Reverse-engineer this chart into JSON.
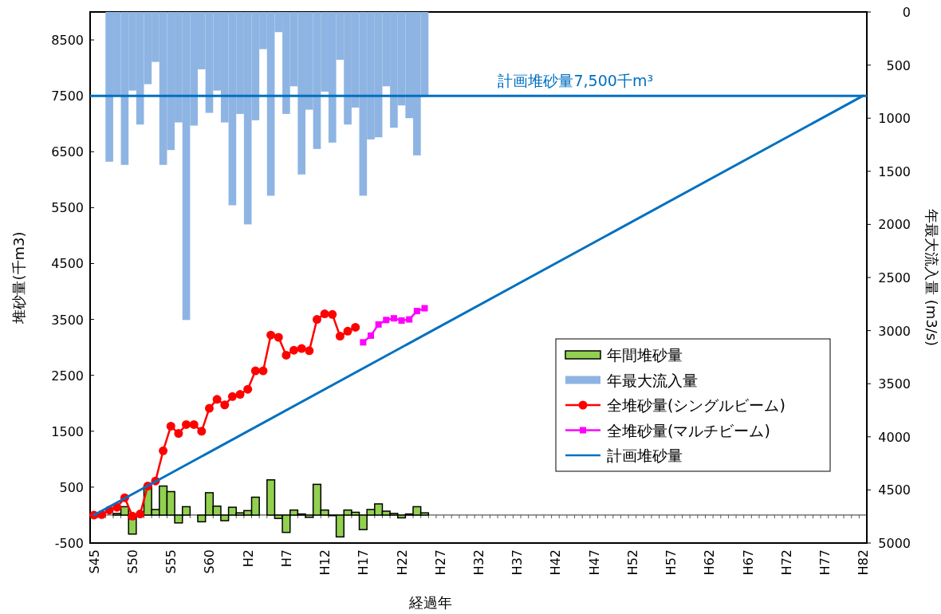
{
  "chart_data": {
    "type": "bar",
    "xlabel": "経過年",
    "ylabel": "堆砂量(千m3)",
    "y2label": "年最大流入量 (m3/s)",
    "categories": [
      "S45",
      null,
      null,
      null,
      null,
      "S50",
      null,
      null,
      null,
      null,
      "S55",
      null,
      null,
      null,
      null,
      "S60",
      null,
      null,
      null,
      null,
      "H2",
      null,
      null,
      null,
      null,
      "H7",
      null,
      null,
      null,
      null,
      "H12",
      null,
      null,
      null,
      null,
      "H17",
      null,
      null,
      null,
      null,
      "H22",
      null,
      null,
      null,
      null,
      "H27",
      null,
      null,
      null,
      null,
      "H32",
      null,
      null,
      null,
      null,
      "H37",
      null,
      null,
      null,
      null,
      "H42",
      null,
      null,
      null,
      null,
      "H47",
      null,
      null,
      null,
      null,
      "H52",
      null,
      null,
      null,
      null,
      "H57",
      null,
      null,
      null,
      null,
      "H62",
      null,
      null,
      null,
      null,
      "H67",
      null,
      null,
      null,
      null,
      "H72",
      null,
      null,
      null,
      null,
      "H77",
      null,
      null,
      null,
      null,
      "H82"
    ],
    "ylim": [
      -500,
      9000
    ],
    "yticks": [
      -500,
      500,
      1500,
      2500,
      3500,
      4500,
      5500,
      6500,
      7500,
      8500
    ],
    "y2lim": [
      5000,
      0
    ],
    "y2ticks": [
      0,
      500,
      1000,
      1500,
      2000,
      2500,
      3000,
      3500,
      4000,
      4500,
      5000
    ],
    "legend": "right",
    "grid": false,
    "ref_lines": [
      {
        "axis": "y",
        "value": 7500,
        "label": "計画堆砂量7,500千m³",
        "color": "#0070c0"
      }
    ],
    "series": [
      {
        "name": "年間堆砂量",
        "type": "bar",
        "axis": "y",
        "color": "#92d050",
        "values": [
          null,
          null,
          null,
          30,
          150,
          -340,
          null,
          520,
          100,
          520,
          420,
          -140,
          150,
          0,
          -120,
          400,
          160,
          -100,
          140,
          40,
          80,
          320,
          0,
          630,
          -60,
          -310,
          90,
          20,
          -40,
          550,
          90,
          -10,
          -390,
          90,
          50,
          -260,
          100,
          200,
          70,
          30,
          -50,
          20,
          150,
          40,
          null,
          null,
          null,
          null,
          null,
          null,
          null,
          null,
          null,
          null,
          null,
          null,
          null,
          null,
          null,
          null,
          null,
          null,
          null,
          null,
          null,
          null,
          null,
          null,
          null,
          null,
          null,
          null,
          null,
          null,
          null,
          null,
          null,
          null,
          null,
          null,
          null,
          null,
          null,
          null,
          null,
          null,
          null,
          null,
          null,
          null,
          null,
          null,
          null,
          null,
          null,
          null,
          null,
          null,
          null,
          null,
          null
        ]
      },
      {
        "name": "年最大流入量",
        "type": "bar",
        "axis": "y2",
        "color": "#8eb4e3",
        "values": [
          null,
          null,
          1410,
          780,
          1440,
          740,
          1060,
          680,
          470,
          1440,
          1300,
          1040,
          2900,
          1070,
          540,
          950,
          740,
          1040,
          1820,
          960,
          2000,
          1020,
          350,
          1730,
          190,
          960,
          700,
          1530,
          920,
          1290,
          750,
          1230,
          450,
          1060,
          900,
          1730,
          1200,
          1180,
          700,
          1090,
          880,
          1000,
          1350,
          800,
          null,
          null,
          null,
          null,
          null,
          null,
          null,
          null,
          null,
          null,
          null,
          null,
          null,
          null,
          null,
          null,
          null,
          null,
          null,
          null,
          null,
          null,
          null,
          null,
          null,
          null,
          null,
          null,
          null,
          null,
          null,
          null,
          null,
          null,
          null,
          null,
          null,
          null,
          null,
          null,
          null,
          null,
          null,
          null,
          null,
          null,
          null,
          null,
          null,
          null,
          null,
          null,
          null,
          null,
          null,
          null,
          null
        ]
      },
      {
        "name": "全堆砂量(シングルビーム)",
        "type": "line",
        "axis": "y",
        "color": "#ff0000",
        "marker": "circle",
        "values": [
          0,
          10,
          90,
          140,
          310,
          -20,
          20,
          520,
          610,
          1150,
          1590,
          1460,
          1620,
          1620,
          1500,
          1910,
          2070,
          1970,
          2120,
          2160,
          2250,
          2580,
          2580,
          3220,
          3180,
          2860,
          2950,
          2980,
          2940,
          3500,
          3600,
          3590,
          3200,
          3290,
          3360,
          null,
          null,
          null,
          null,
          null,
          null,
          null,
          null,
          null,
          null,
          null,
          null,
          null,
          null,
          null,
          null,
          null,
          null,
          null,
          null,
          null,
          null,
          null,
          null,
          null,
          null,
          null,
          null,
          null,
          null,
          null,
          null,
          null,
          null,
          null,
          null,
          null,
          null,
          null,
          null,
          null,
          null,
          null,
          null,
          null,
          null,
          null,
          null,
          null,
          null,
          null,
          null,
          null,
          null,
          null,
          null,
          null,
          null,
          null,
          null,
          null,
          null,
          null,
          null,
          null,
          null
        ]
      },
      {
        "name": "全堆砂量(マルチビーム)",
        "type": "line",
        "axis": "y",
        "color": "#ff00ff",
        "marker": "square",
        "values": [
          null,
          null,
          null,
          null,
          null,
          null,
          null,
          null,
          null,
          null,
          null,
          null,
          null,
          null,
          null,
          null,
          null,
          null,
          null,
          null,
          null,
          null,
          null,
          null,
          null,
          null,
          null,
          null,
          null,
          null,
          null,
          null,
          null,
          null,
          null,
          3090,
          3210,
          3410,
          3490,
          3520,
          3480,
          3500,
          3650,
          3700,
          null,
          null,
          null,
          null,
          null,
          null,
          null,
          null,
          null,
          null,
          null,
          null,
          null,
          null,
          null,
          null,
          null,
          null,
          null,
          null,
          null,
          null,
          null,
          null,
          null,
          null,
          null,
          null,
          null,
          null,
          null,
          null,
          null,
          null,
          null,
          null,
          null,
          null,
          null,
          null,
          null,
          null,
          null,
          null,
          null,
          null,
          null,
          null,
          null,
          null,
          null,
          null,
          null,
          null,
          null,
          null,
          null
        ]
      },
      {
        "name": "計画堆砂量",
        "type": "line",
        "axis": "y",
        "color": "#0070c0",
        "marker": "none",
        "x": [
          "S45",
          "H82"
        ],
        "values": [
          0,
          7500
        ]
      }
    ]
  }
}
